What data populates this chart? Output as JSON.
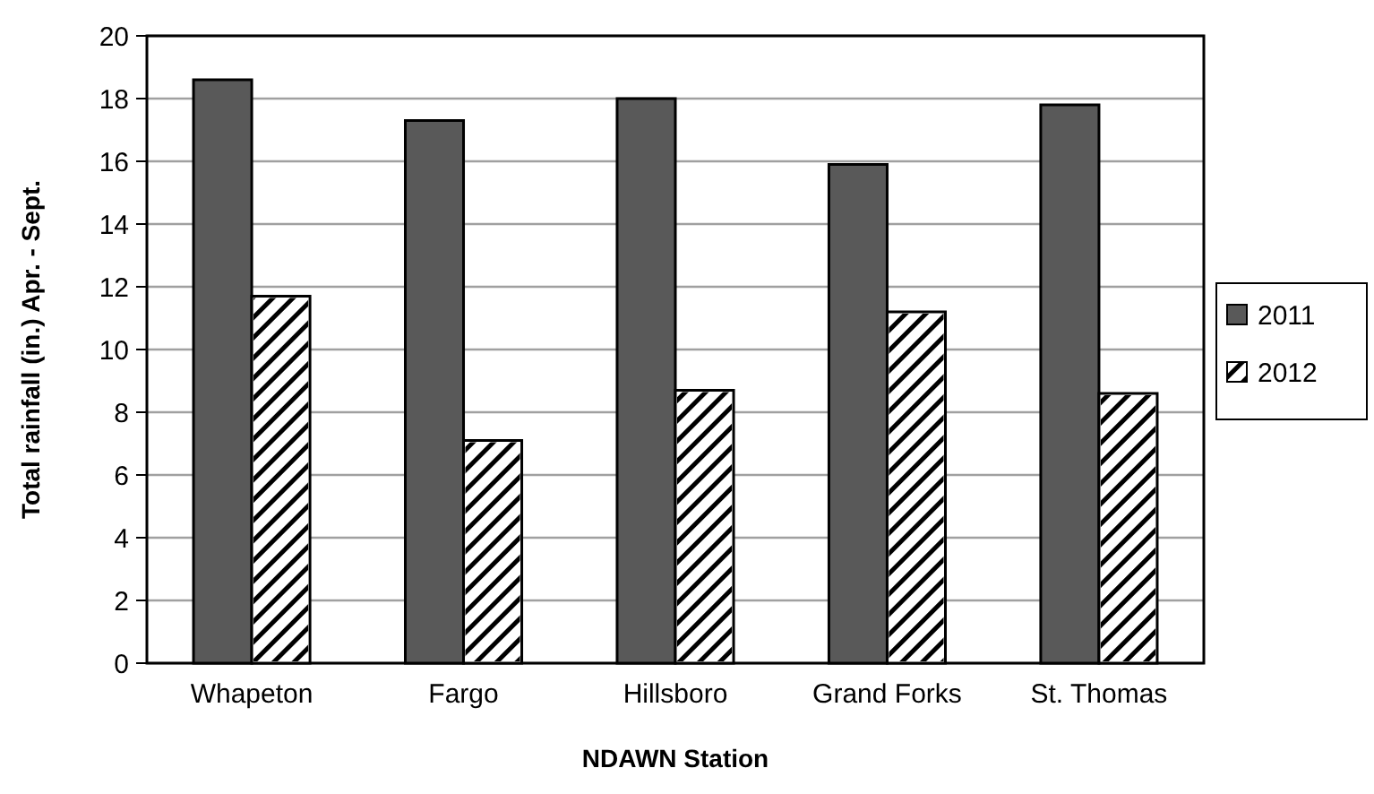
{
  "chart_data": {
    "type": "bar",
    "xlabel": "NDAWN Station",
    "ylabel": "Total rainfall (in.) Apr. - Sept.",
    "categories": [
      "Whapeton",
      "Fargo",
      "Hillsboro",
      "Grand Forks",
      "St. Thomas"
    ],
    "series": [
      {
        "name": "2011",
        "color": "#595959",
        "values": [
          18.6,
          17.3,
          18.0,
          15.9,
          17.8
        ]
      },
      {
        "name": "2012",
        "color": "#ffffff",
        "values": [
          11.7,
          7.1,
          8.7,
          11.2,
          8.6
        ]
      }
    ],
    "ylim": [
      0,
      20
    ],
    "yticks": [
      0,
      2,
      4,
      6,
      8,
      10,
      12,
      14,
      16,
      18,
      20
    ],
    "grid": "y",
    "legend": "right"
  }
}
